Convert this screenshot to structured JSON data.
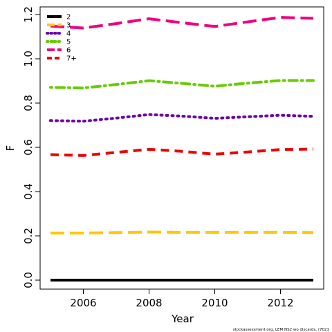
{
  "chart_data": {
    "type": "line",
    "title": "",
    "xlabel": "Year",
    "ylabel": "F",
    "xlim": [
      2005,
      2013
    ],
    "ylim": [
      0,
      1.2
    ],
    "x_ticks": [
      2006,
      2008,
      2010,
      2012
    ],
    "y_ticks": [
      "0.0",
      "0.2",
      "0.4",
      "0.6",
      "0.8",
      "1.0",
      "1.2"
    ],
    "grid": false,
    "legend_position": "top-left",
    "x": [
      2005,
      2006,
      2007,
      2008,
      2009,
      2010,
      2011,
      2012,
      2013
    ],
    "series": [
      {
        "name": "2",
        "color": "#000000",
        "dash": "solid",
        "values": [
          0.0,
          0.0,
          0.0,
          0.0,
          0.0,
          0.0,
          0.0,
          0.0,
          0.0
        ]
      },
      {
        "name": "3",
        "color": "#FFC800",
        "dash": "longdash",
        "values": [
          0.213,
          0.213,
          0.215,
          0.217,
          0.216,
          0.216,
          0.216,
          0.216,
          0.215
        ]
      },
      {
        "name": "4",
        "color": "#6B00A8",
        "dash": "dotted",
        "values": [
          0.721,
          0.718,
          0.732,
          0.748,
          0.741,
          0.731,
          0.738,
          0.745,
          0.74
        ]
      },
      {
        "name": "5",
        "color": "#66CC00",
        "dash": "dotdash",
        "values": [
          0.871,
          0.868,
          0.884,
          0.901,
          0.889,
          0.876,
          0.89,
          0.902,
          0.902
        ]
      },
      {
        "name": "6",
        "color": "#F0007F",
        "dash": "longdash",
        "values": [
          1.148,
          1.139,
          1.159,
          1.181,
          1.163,
          1.146,
          1.167,
          1.187,
          1.183
        ]
      },
      {
        "name": "7+",
        "color": "#EE0000",
        "dash": "dashed",
        "values": [
          0.567,
          0.563,
          0.577,
          0.591,
          0.582,
          0.569,
          0.579,
          0.59,
          0.592
        ]
      }
    ],
    "credit": "stockassessment.org, LEM NS2 wo discards, r7021"
  }
}
